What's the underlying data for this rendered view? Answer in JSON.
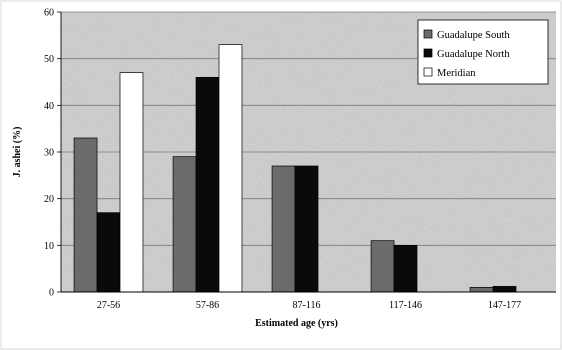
{
  "chart_data": {
    "type": "bar",
    "title": "",
    "xlabel": "Estimated age (yrs)",
    "ylabel": "J. ashei (%)",
    "ylim": [
      0,
      60
    ],
    "yticks": [
      "0",
      "10",
      "20",
      "30",
      "40",
      "50",
      "60"
    ],
    "categories": [
      "27-56",
      "57-86",
      "87-116",
      "117-146",
      "147-177"
    ],
    "series": [
      {
        "name": "Guadalupe South",
        "values": [
          33,
          29,
          27,
          11,
          1
        ],
        "color": "#6b6b6b"
      },
      {
        "name": "Guadalupe North",
        "values": [
          17,
          46,
          27,
          10,
          1.2
        ],
        "color": "#0a0a0a"
      },
      {
        "name": "Meridian",
        "values": [
          47,
          53,
          0,
          0,
          0
        ],
        "color": "#ffffff"
      }
    ],
    "grid": true,
    "legend": "top-right",
    "plot_background": "#c8c8c8"
  }
}
